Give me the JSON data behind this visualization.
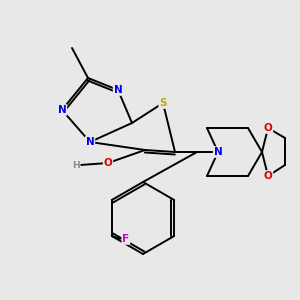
{
  "bg_color": "#e8e8e8",
  "atom_colors": {
    "N": "#0000ee",
    "S": "#bbaa00",
    "O": "#dd0000",
    "F": "#cc00cc",
    "C": "#000000",
    "H": "#888888"
  },
  "figsize": [
    3.0,
    3.0
  ],
  "dpi": 100,
  "lw": 1.4,
  "fs": 7.5
}
